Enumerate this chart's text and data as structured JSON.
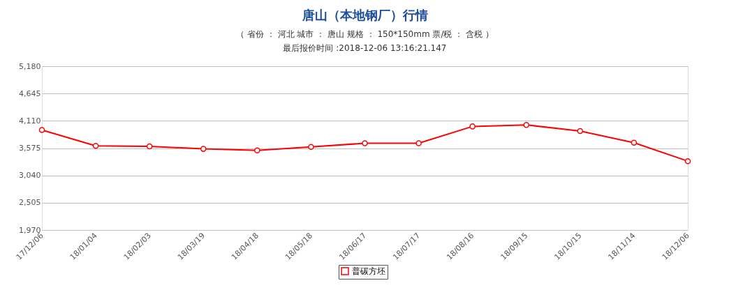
{
  "chart_data": {
    "type": "line",
    "title": "唐山（本地钢厂）行情",
    "subtitle": "（ 省份 ： 河北 城市 ： 唐山 规格 ： 150*150mm 票/税 ： 含税 ）",
    "annotations": [
      "最后报价时间 :2018-12-06 13:16:21.147"
    ],
    "categories": [
      "17/12/06",
      "18/01/04",
      "18/02/03",
      "18/03/19",
      "18/04/18",
      "18/05/18",
      "18/06/17",
      "18/07/17",
      "18/08/16",
      "18/09/15",
      "18/10/15",
      "18/11/14",
      "18/12/06"
    ],
    "series": [
      {
        "name": "普碳方坯",
        "color": "#ff0000",
        "values": [
          3930,
          3620,
          3610,
          3560,
          3530,
          3600,
          3670,
          3670,
          4000,
          4030,
          3910,
          3680,
          3320
        ]
      }
    ],
    "ylim": [
      1970,
      5180
    ],
    "yticks": [
      {
        "value": 1970,
        "label": "1,970"
      },
      {
        "value": 2505,
        "label": "2,505"
      },
      {
        "value": 3040,
        "label": "3,040"
      },
      {
        "value": 3575,
        "label": "3,575"
      },
      {
        "value": 4110,
        "label": "4,110"
      },
      {
        "value": 4645,
        "label": "4,645"
      },
      {
        "value": 5180,
        "label": "5,180"
      }
    ],
    "grid": "y",
    "legend": "bottom",
    "marker": "circle",
    "line_style": "solid"
  }
}
